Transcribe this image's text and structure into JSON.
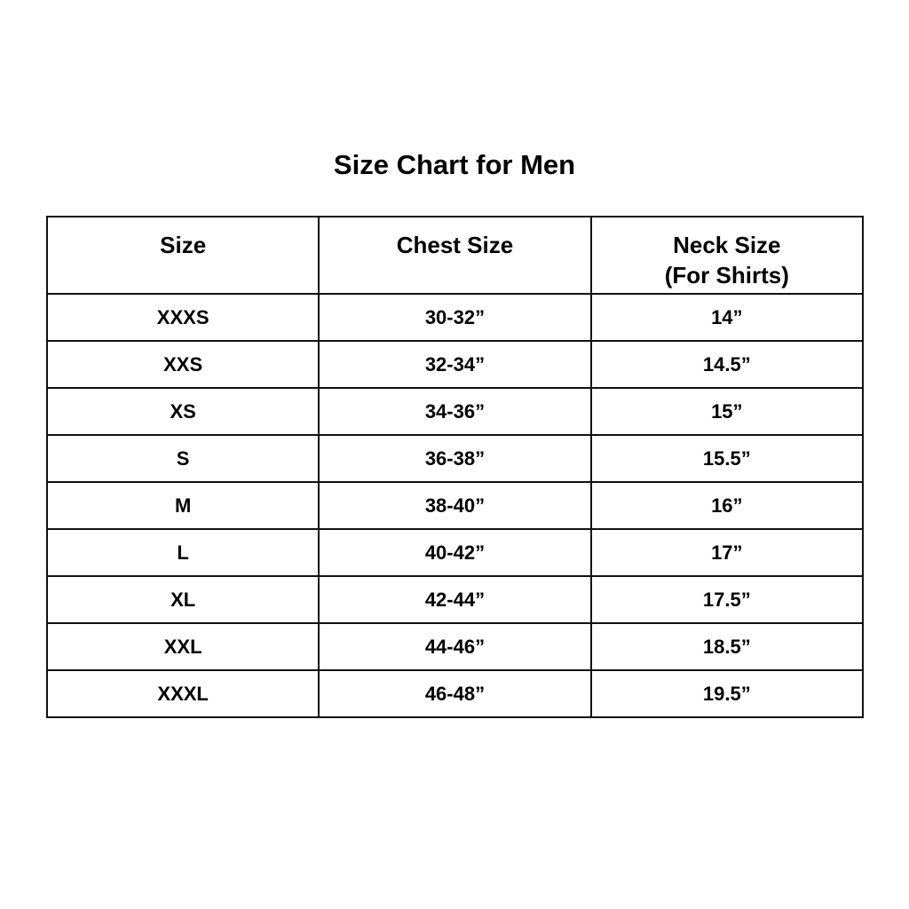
{
  "title": "Size Chart for Men",
  "headers": [
    "Size",
    "Chest Size",
    "Neck Size",
    "(For Shirts)"
  ],
  "rows": [
    [
      "XXXS",
      "30-32”",
      "14”"
    ],
    [
      "XXS",
      "32-34”",
      "14.5”"
    ],
    [
      "XS",
      "34-36”",
      "15”"
    ],
    [
      "S",
      "36-38”",
      "15.5”"
    ],
    [
      "M",
      "38-40”",
      "16”"
    ],
    [
      "L",
      "40-42”",
      "17”"
    ],
    [
      "XL",
      "42-44”",
      "17.5”"
    ],
    [
      "XXL",
      "44-46”",
      "18.5”"
    ],
    [
      "XXXL",
      "46-48”",
      "19.5”"
    ]
  ]
}
